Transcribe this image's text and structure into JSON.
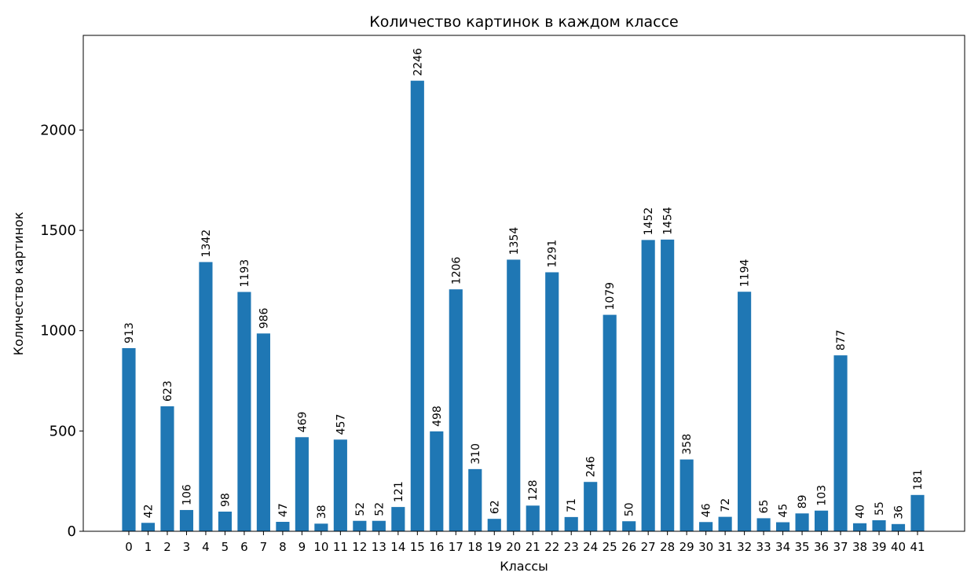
{
  "chart_data": {
    "type": "bar",
    "title": "Количество картинок в каждом классе",
    "xlabel": "Классы",
    "ylabel": "Количество картинок",
    "categories": [
      "0",
      "1",
      "2",
      "3",
      "4",
      "5",
      "6",
      "7",
      "8",
      "9",
      "10",
      "11",
      "12",
      "13",
      "14",
      "15",
      "16",
      "17",
      "18",
      "19",
      "20",
      "21",
      "22",
      "23",
      "24",
      "25",
      "26",
      "27",
      "28",
      "29",
      "30",
      "31",
      "32",
      "33",
      "34",
      "35",
      "36",
      "37",
      "38",
      "39",
      "40",
      "41"
    ],
    "values": [
      913,
      42,
      623,
      106,
      1342,
      98,
      1193,
      986,
      47,
      469,
      38,
      457,
      52,
      52,
      121,
      2246,
      498,
      1206,
      310,
      62,
      1354,
      128,
      1291,
      71,
      246,
      1079,
      50,
      1452,
      1454,
      358,
      46,
      72,
      1194,
      65,
      45,
      89,
      103,
      877,
      40,
      55,
      36,
      181
    ],
    "yticks": [
      0,
      500,
      1000,
      1500,
      2000
    ],
    "ylim": [
      0,
      2472
    ],
    "bar_color": "#1f77b4",
    "grid": false,
    "data_labels": true
  }
}
